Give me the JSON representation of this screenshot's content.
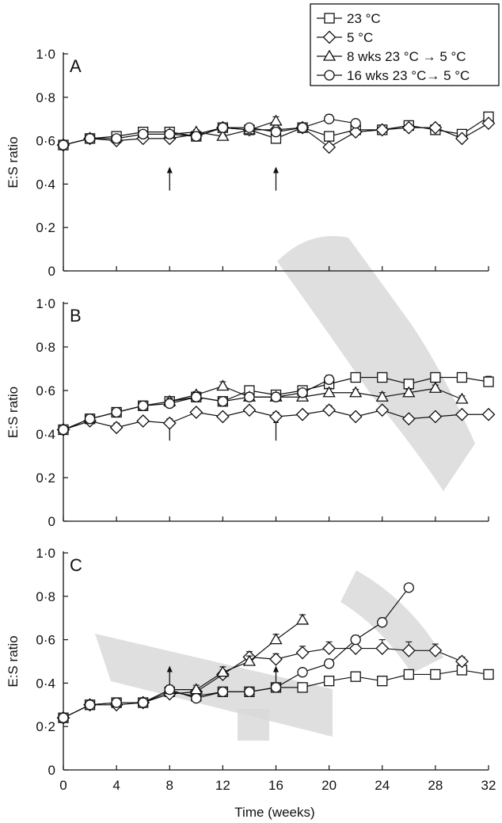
{
  "chart_data": {
    "type": "line",
    "xlabel": "Time (weeks)",
    "xlim": [
      0,
      32
    ],
    "x_ticks": [
      "0",
      "4",
      "8",
      "12",
      "16",
      "20",
      "24",
      "28",
      "32"
    ],
    "y_ticks": [
      "0",
      "0·2",
      "0·4",
      "0·6",
      "0·8",
      "1·0"
    ],
    "legend": {
      "placement": "top-right",
      "entries": [
        "23 °C",
        "5 °C",
        "8 wks 23 °C → 5 °C",
        "16 wks 23 °C→ 5 °C"
      ]
    },
    "panels": [
      {
        "label": "A",
        "ylabel": "E:S ratio",
        "ylim": [
          0,
          1.0
        ],
        "arrows_at_x": [
          8,
          16
        ],
        "series": [
          {
            "name": "23 °C",
            "marker": "square",
            "x": [
              0,
              2,
              4,
              6,
              8,
              10,
              12,
              14,
              16,
              18,
              20,
              22,
              24,
              26,
              28,
              30,
              32
            ],
            "y": [
              0.58,
              0.61,
              0.62,
              0.64,
              0.64,
              0.62,
              0.66,
              0.65,
              0.61,
              0.66,
              0.62,
              0.65,
              0.65,
              0.67,
              0.65,
              0.63,
              0.71
            ],
            "err": [
              0.01,
              0.015,
              0.015,
              0.015,
              0.015,
              0.015,
              0.015,
              0.015,
              0.015,
              0.01,
              0.015,
              0.01,
              0.01,
              0.01,
              0.01,
              0.01,
              0.01
            ]
          },
          {
            "name": "5 °C",
            "marker": "diamond",
            "x": [
              0,
              2,
              4,
              6,
              8,
              10,
              12,
              14,
              16,
              18,
              20,
              22,
              24,
              26,
              28,
              30,
              32
            ],
            "y": [
              0.58,
              0.61,
              0.6,
              0.61,
              0.61,
              0.63,
              0.66,
              0.65,
              0.65,
              0.66,
              0.57,
              0.64,
              0.65,
              0.66,
              0.66,
              0.61,
              0.68
            ],
            "err": [
              0.01,
              0.015,
              0.02,
              0.015,
              0.02,
              0.015,
              0.015,
              0.015,
              0.015,
              0.01,
              0.015,
              0.01,
              0.01,
              0.01,
              0.01,
              0.015,
              0.01
            ]
          },
          {
            "name": "8 wks 23 °C → 5 °C",
            "marker": "triangle",
            "x": [
              8,
              10,
              12,
              14,
              16
            ],
            "y": [
              0.63,
              0.64,
              0.62,
              0.65,
              0.69
            ],
            "err": [
              0.01,
              0.01,
              0.01,
              0.015,
              0.02
            ]
          },
          {
            "name": "16 wks 23 °C→ 5 °C",
            "marker": "circle",
            "x": [
              0,
              2,
              4,
              6,
              8,
              10,
              12,
              14,
              16,
              18,
              20,
              22
            ],
            "y": [
              0.58,
              0.61,
              0.61,
              0.63,
              0.63,
              0.62,
              0.66,
              0.66,
              0.64,
              0.66,
              0.7,
              0.68
            ],
            "err": [
              0.01,
              0.015,
              0.015,
              0.015,
              0.015,
              0.015,
              0.015,
              0.015,
              0.015,
              0.01,
              0.02,
              0.01
            ]
          }
        ]
      },
      {
        "label": "B",
        "ylabel": "E:S ratio",
        "ylim": [
          0,
          1.0
        ],
        "arrows_at_x": [
          8,
          16
        ],
        "series": [
          {
            "name": "23 °C",
            "marker": "square",
            "x": [
              0,
              2,
              4,
              6,
              8,
              10,
              12,
              14,
              16,
              18,
              20,
              22,
              24,
              26,
              28,
              30,
              32
            ],
            "y": [
              0.42,
              0.47,
              0.5,
              0.53,
              0.55,
              0.57,
              0.55,
              0.6,
              0.58,
              0.6,
              0.63,
              0.66,
              0.66,
              0.63,
              0.66,
              0.66,
              0.64
            ],
            "err": [
              0.01,
              0.015,
              0.015,
              0.02,
              0.02,
              0.02,
              0.015,
              0.015,
              0.015,
              0.02,
              0.02,
              0.015,
              0.015,
              0.015,
              0.015,
              0.015,
              0.025
            ]
          },
          {
            "name": "5 °C",
            "marker": "diamond",
            "x": [
              0,
              2,
              4,
              6,
              8,
              10,
              12,
              14,
              16,
              18,
              20,
              22,
              24,
              26,
              28,
              30,
              32
            ],
            "y": [
              0.42,
              0.46,
              0.43,
              0.46,
              0.45,
              0.5,
              0.48,
              0.51,
              0.48,
              0.49,
              0.51,
              0.48,
              0.51,
              0.47,
              0.48,
              0.49,
              0.49
            ],
            "err": [
              0.01,
              0.015,
              0.02,
              0.015,
              0.02,
              0.015,
              0.015,
              0.015,
              0.02,
              0.015,
              0.02,
              0.015,
              0.015,
              0.015,
              0.015,
              0.015,
              0.01
            ]
          },
          {
            "name": "8 wks 23 °C → 5 °C",
            "marker": "triangle",
            "x": [
              8,
              10,
              12,
              14,
              16,
              18,
              20,
              22,
              24,
              26,
              28,
              30
            ],
            "y": [
              0.55,
              0.58,
              0.62,
              0.57,
              0.57,
              0.57,
              0.59,
              0.59,
              0.57,
              0.59,
              0.61,
              0.56
            ],
            "err": [
              0.015,
              0.015,
              0.02,
              0.02,
              0.02,
              0.02,
              0.02,
              0.015,
              0.02,
              0.015,
              0.015,
              0.015
            ]
          },
          {
            "name": "16 wks 23 °C→ 5 °C",
            "marker": "circle",
            "x": [
              0,
              2,
              4,
              6,
              8,
              10,
              12,
              14,
              16,
              18,
              20
            ],
            "y": [
              0.42,
              0.47,
              0.5,
              0.53,
              0.54,
              0.57,
              0.55,
              0.57,
              0.57,
              0.59,
              0.65
            ],
            "err": [
              0.01,
              0.015,
              0.015,
              0.02,
              0.02,
              0.02,
              0.015,
              0.015,
              0.015,
              0.015,
              0.02
            ]
          }
        ]
      },
      {
        "label": "C",
        "ylabel": "E:S ratio",
        "ylim": [
          0,
          1.0
        ],
        "arrows_at_x": [
          8,
          16
        ],
        "series": [
          {
            "name": "23 °C",
            "marker": "square",
            "x": [
              0,
              2,
              4,
              6,
              8,
              10,
              12,
              14,
              16,
              18,
              20,
              22,
              24,
              26,
              28,
              30,
              32
            ],
            "y": [
              0.24,
              0.3,
              0.31,
              0.31,
              0.36,
              0.34,
              0.36,
              0.36,
              0.38,
              0.38,
              0.41,
              0.43,
              0.41,
              0.44,
              0.44,
              0.46,
              0.44
            ],
            "err": [
              0.015,
              0.015,
              0.015,
              0.015,
              0.02,
              0.015,
              0.015,
              0.015,
              0.015,
              0.01,
              0.01,
              0.01,
              0.01,
              0.01,
              0.015,
              0.015,
              0.02
            ]
          },
          {
            "name": "5 °C",
            "marker": "diamond",
            "x": [
              0,
              2,
              4,
              6,
              8,
              10,
              12,
              14,
              16,
              18,
              20,
              22,
              24,
              26,
              28,
              30
            ],
            "y": [
              0.24,
              0.3,
              0.3,
              0.31,
              0.35,
              0.36,
              0.44,
              0.52,
              0.51,
              0.54,
              0.56,
              0.56,
              0.56,
              0.55,
              0.55,
              0.5
            ],
            "err": [
              0.015,
              0.015,
              0.015,
              0.015,
              0.02,
              0.02,
              0.02,
              0.025,
              0.025,
              0.03,
              0.03,
              0.04,
              0.04,
              0.04,
              0.03,
              0.02
            ]
          },
          {
            "name": "8 wks 23 °C → 5 °C",
            "marker": "triangle",
            "x": [
              8,
              10,
              12,
              14,
              16,
              18
            ],
            "y": [
              0.37,
              0.37,
              0.45,
              0.5,
              0.6,
              0.69
            ],
            "err": [
              0.02,
              0.02,
              0.025,
              0.025,
              0.025,
              0.025
            ]
          },
          {
            "name": "16 wks 23 °C→ 5 °C",
            "marker": "circle",
            "x": [
              0,
              2,
              4,
              6,
              8,
              10,
              12,
              14,
              16,
              18,
              20,
              22,
              24,
              26
            ],
            "y": [
              0.24,
              0.3,
              0.31,
              0.31,
              0.37,
              0.33,
              0.36,
              0.36,
              0.38,
              0.45,
              0.49,
              0.6,
              0.68,
              0.84
            ],
            "err": [
              0.015,
              0.015,
              0.015,
              0.015,
              0.02,
              0.015,
              0.015,
              0.015,
              0.015,
              0.015,
              0.02,
              0.02,
              0.02,
              0.01
            ]
          }
        ]
      }
    ]
  }
}
